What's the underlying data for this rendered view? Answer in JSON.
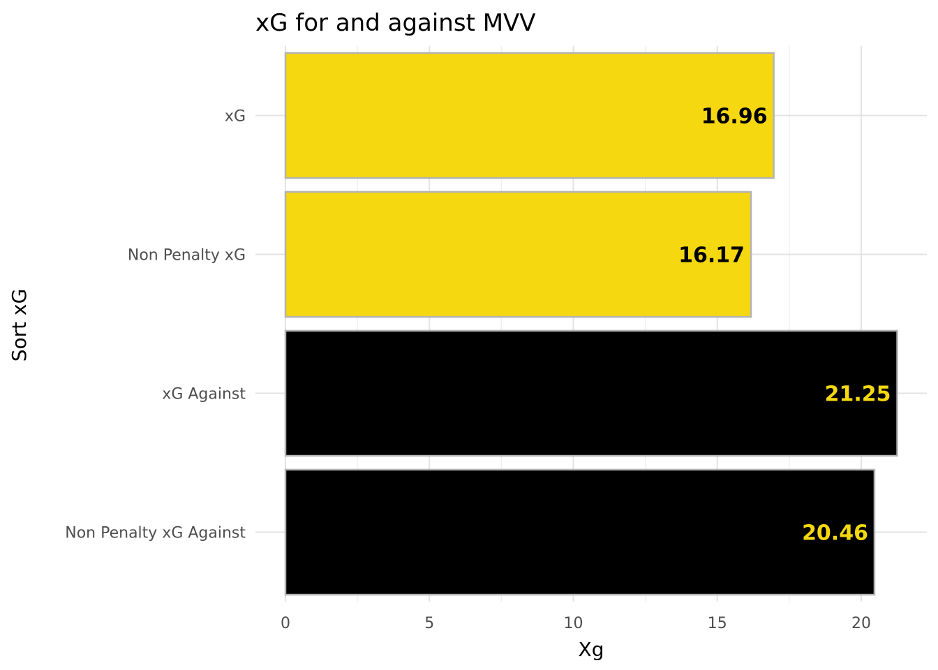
{
  "chart_data": {
    "type": "bar",
    "orientation": "horizontal",
    "title": "xG for and against MVV",
    "xlabel": "Xg",
    "ylabel": "Sort xG",
    "xlim": [
      0,
      21.25
    ],
    "x_ticks": [
      "0",
      "5",
      "10",
      "15",
      "20"
    ],
    "x_tick_values": [
      0,
      5,
      10,
      15,
      20
    ],
    "categories": [
      "xG",
      "Non Penalty xG",
      "xG Against",
      "Non Penalty xG Against"
    ],
    "values": [
      16.96,
      16.17,
      21.25,
      20.46
    ],
    "value_labels": [
      "16.96",
      "16.17",
      "21.25",
      "20.46"
    ],
    "bar_colors": [
      "#f5d80f",
      "#f5d80f",
      "#000000",
      "#000000"
    ],
    "label_colors": [
      "#000000",
      "#000000",
      "#f5d80f",
      "#f5d80f"
    ],
    "bar_outline_color": "#b3b3b3",
    "grid": true,
    "legend": "none"
  }
}
